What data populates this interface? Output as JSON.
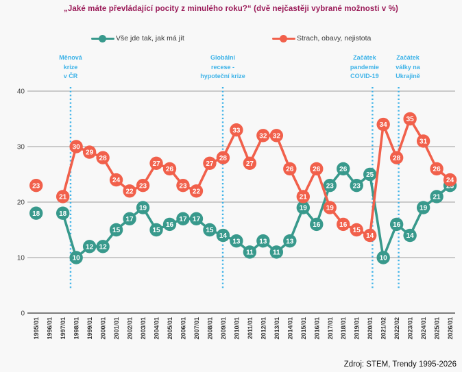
{
  "title": "„Jaké máte převládající pocity z minulého roku?“ (dvě nejčastěji vybrané možnosti v %)",
  "legend": [
    {
      "label": "Vše jde tak, jak má jít",
      "color": "#38998c"
    },
    {
      "label": "Strach, obavy, nejistota",
      "color": "#f1604b"
    }
  ],
  "source": "Zdroj: STEM, Trendy 1995-2026",
  "colors": {
    "teal": "#38998c",
    "orange": "#f1604b",
    "title": "#9a1a58",
    "annotation": "#3eb3e8",
    "grid": "#9c9c9c",
    "axis": "#7d7d7d",
    "tick_text": "#3c3c3c",
    "background": "#f8f8f8"
  },
  "annotations": [
    {
      "id": "menova-krize",
      "lines": [
        "Měnová",
        "krize",
        "v ČR"
      ],
      "text_x_index": 2.58,
      "line_x_index": 2.58
    },
    {
      "id": "globalni-recese",
      "lines": [
        "Globální",
        "recese -",
        "hypoteční krize"
      ],
      "text_x_index": 13.98,
      "line_x_index": 13.98
    },
    {
      "id": "covid-19",
      "lines": [
        "Začátek",
        "pandemie",
        "COVID-19"
      ],
      "text_x_index": 24.6,
      "line_x_index": 25.19
    },
    {
      "id": "valka-ukrajina",
      "lines": [
        "Začátek",
        "války na",
        "Ukrajině"
      ],
      "text_x_index": 27.84,
      "line_x_index": 27.15
    }
  ],
  "chart_data": {
    "type": "line",
    "title": "„Jaké máte převládající pocity z minulého roku?“ (dvě nejčastěji vybrané možnosti v %)",
    "xlabel": "",
    "ylabel": "",
    "ylim": [
      0,
      40
    ],
    "yticks": [
      0,
      10,
      20,
      30,
      40
    ],
    "grid": "horizontal",
    "legend_position": "top",
    "categories": [
      "1995/01",
      "1996/01",
      "1997/01",
      "1998/01",
      "1999/01",
      "2000/01",
      "2001/01",
      "2002/01",
      "2003/01",
      "2004/01",
      "2005/01",
      "2006/01",
      "2007/01",
      "2008/01",
      "2009/01",
      "2010/01",
      "2011/01",
      "2012/01",
      "2013/01",
      "2014/01",
      "2015/01",
      "2016/01",
      "2017/01",
      "2018/01",
      "2019/01",
      "2020/01",
      "2021/02",
      "2022/02",
      "2023/01",
      "2024/01",
      "2025/01",
      "2026/01"
    ],
    "series": [
      {
        "name": "Vše jde tak, jak má jít",
        "color": "#38998c",
        "values": [
          18,
          null,
          18,
          10,
          12,
          12,
          15,
          17,
          19,
          15,
          16,
          17,
          17,
          15,
          14,
          13,
          11,
          13,
          11,
          13,
          19,
          16,
          23,
          26,
          23,
          25,
          10,
          16,
          14,
          19,
          21,
          23
        ]
      },
      {
        "name": "Strach, obavy, nejistota",
        "color": "#f1604b",
        "values": [
          23,
          null,
          21,
          30,
          29,
          28,
          24,
          22,
          23,
          27,
          26,
          23,
          22,
          27,
          28,
          33,
          27,
          32,
          32,
          26,
          21,
          26,
          19,
          16,
          15,
          14,
          34,
          28,
          35,
          31,
          26,
          24
        ]
      }
    ]
  }
}
